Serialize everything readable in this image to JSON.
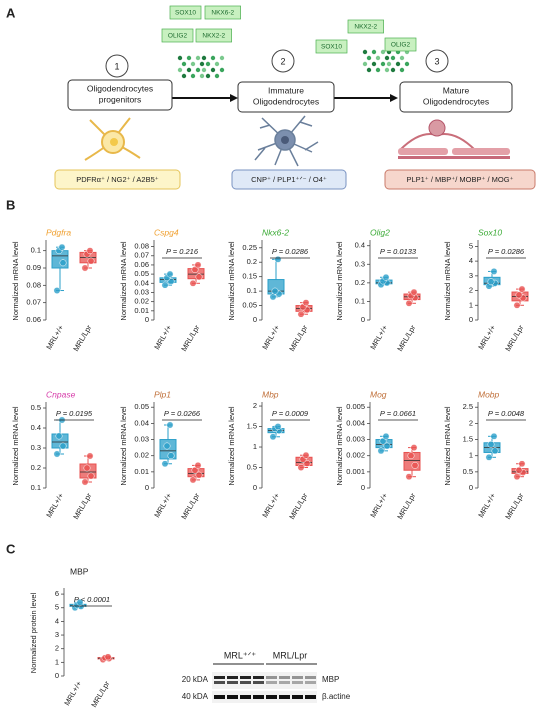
{
  "panel_a": {
    "label": "A",
    "steps": [
      "1",
      "2",
      "3"
    ],
    "stages": [
      [
        "Oligodendrocytes",
        "progenitors"
      ],
      [
        "Immature",
        "Oligodendrocytes"
      ],
      [
        "Mature",
        "Oligodendrocytes"
      ]
    ],
    "factors_1": [
      "SOX10",
      "NKX6-2",
      "OLIG2",
      "NKX2-2"
    ],
    "factors_2": [
      "NKX2-2",
      "SOX10",
      "OLIG2"
    ],
    "markers": [
      "PDFRα⁺ / NG2⁺ / A2B5⁺",
      "CNP⁺ / PLP1⁺ᐟ⁻ / O4⁺",
      "PLP1⁺ / MBP⁺/ MOBP⁺ / MOG⁺"
    ]
  },
  "panel_b": {
    "label": "B"
  },
  "panel_c": {
    "label": "C",
    "blot_groups": [
      "MRL⁺ᐟ⁺",
      "MRL/Lpr"
    ],
    "sizes": [
      "20 kDA",
      "40 kDA"
    ],
    "bands": [
      "MBP",
      "β.actine"
    ]
  },
  "chart_data": [
    {
      "type": "box",
      "title": "Pdgfra",
      "title_color": "#f0a030",
      "ylabel": "Normalized mRNA level",
      "categories": [
        "MRL+/+",
        "MRL/Lpr"
      ],
      "ylim": [
        0.06,
        0.105
      ],
      "yticks": [
        0.06,
        0.07,
        0.08,
        0.09,
        0.1
      ],
      "groups": [
        {
          "color": "#2a9fc9",
          "min": 0.077,
          "q1": 0.09,
          "median": 0.097,
          "q3": 0.1,
          "max": 0.102,
          "points": [
            0.077,
            0.093,
            0.1,
            0.102
          ]
        },
        {
          "color": "#e8504f",
          "min": 0.09,
          "q1": 0.093,
          "median": 0.096,
          "q3": 0.099,
          "max": 0.1,
          "points": [
            0.09,
            0.094,
            0.098,
            0.1
          ]
        }
      ]
    },
    {
      "type": "box",
      "title": "Cspg4",
      "title_color": "#f0a030",
      "ylabel": "Normalized mRNA level",
      "categories": [
        "MRL+/+",
        "MRL/Lpr"
      ],
      "p_label": "P = 0.216",
      "ylim": [
        0,
        0.085
      ],
      "yticks": [
        0,
        0.01,
        0.02,
        0.03,
        0.04,
        0.05,
        0.06,
        0.07,
        0.08
      ],
      "groups": [
        {
          "color": "#2a9fc9",
          "min": 0.038,
          "q1": 0.041,
          "median": 0.044,
          "q3": 0.046,
          "max": 0.05,
          "points": [
            0.038,
            0.042,
            0.046,
            0.05
          ]
        },
        {
          "color": "#e8504f",
          "min": 0.04,
          "q1": 0.045,
          "median": 0.05,
          "q3": 0.056,
          "max": 0.06,
          "points": [
            0.04,
            0.047,
            0.055,
            0.06
          ]
        }
      ]
    },
    {
      "type": "box",
      "title": "Nkx6-2",
      "title_color": "#3aaa35",
      "ylabel": "Normalized mRNA level",
      "categories": [
        "MRL+/+",
        "MRL/Lpr"
      ],
      "p_label": "P = 0.0286",
      "ylim": [
        0,
        0.27
      ],
      "yticks": [
        0,
        0.05,
        0.1,
        0.15,
        0.2,
        0.25
      ],
      "groups": [
        {
          "color": "#2a9fc9",
          "min": 0.08,
          "q1": 0.09,
          "median": 0.1,
          "q3": 0.14,
          "max": 0.21,
          "points": [
            0.08,
            0.09,
            0.1,
            0.21
          ]
        },
        {
          "color": "#e8504f",
          "min": 0.02,
          "q1": 0.03,
          "median": 0.04,
          "q3": 0.05,
          "max": 0.06,
          "points": [
            0.02,
            0.035,
            0.045,
            0.06
          ]
        }
      ]
    },
    {
      "type": "box",
      "title": "Olig2",
      "title_color": "#3aaa35",
      "ylabel": "Normalized mRNA level",
      "categories": [
        "MRL+/+",
        "MRL/Lpr"
      ],
      "p_label": "P = 0.0133",
      "ylim": [
        0,
        0.42
      ],
      "yticks": [
        0,
        0.1,
        0.2,
        0.3,
        0.4
      ],
      "groups": [
        {
          "color": "#2a9fc9",
          "min": 0.19,
          "q1": 0.195,
          "median": 0.2,
          "q3": 0.215,
          "max": 0.23,
          "points": [
            0.19,
            0.2,
            0.21,
            0.23
          ]
        },
        {
          "color": "#e8504f",
          "min": 0.09,
          "q1": 0.11,
          "median": 0.125,
          "q3": 0.14,
          "max": 0.15,
          "points": [
            0.09,
            0.12,
            0.13,
            0.15
          ]
        }
      ]
    },
    {
      "type": "box",
      "title": "Sox10",
      "title_color": "#3aaa35",
      "ylabel": "Normalized mRNA level",
      "categories": [
        "MRL+/+",
        "MRL/Lpr"
      ],
      "p_label": "P = 0.0286",
      "ylim": [
        0,
        5.3
      ],
      "yticks": [
        0,
        1,
        2,
        3,
        4,
        5
      ],
      "groups": [
        {
          "color": "#2a9fc9",
          "min": 2.3,
          "q1": 2.4,
          "median": 2.5,
          "q3": 2.9,
          "max": 3.3,
          "points": [
            2.3,
            2.5,
            2.6,
            3.3
          ]
        },
        {
          "color": "#e8504f",
          "min": 1,
          "q1": 1.3,
          "median": 1.6,
          "q3": 1.9,
          "max": 2.1,
          "points": [
            1,
            1.5,
            1.7,
            2.1
          ]
        }
      ]
    },
    {
      "type": "box",
      "title": "Cnpase",
      "title_color": "#d63aa8",
      "ylabel": "Normalized mRNA level",
      "categories": [
        "MRL+/+",
        "MRL/Lpr"
      ],
      "p_label": "P = 0.0195",
      "ylim": [
        0.1,
        0.52
      ],
      "yticks": [
        0.1,
        0.2,
        0.3,
        0.4,
        0.5
      ],
      "groups": [
        {
          "color": "#2a9fc9",
          "min": 0.27,
          "q1": 0.3,
          "median": 0.33,
          "q3": 0.37,
          "max": 0.44,
          "points": [
            0.27,
            0.31,
            0.36,
            0.44
          ]
        },
        {
          "color": "#e8504f",
          "min": 0.13,
          "q1": 0.15,
          "median": 0.18,
          "q3": 0.22,
          "max": 0.26,
          "points": [
            0.13,
            0.16,
            0.2,
            0.26
          ]
        }
      ]
    },
    {
      "type": "box",
      "title": "Plp1",
      "title_color": "#c0703a",
      "ylabel": "Normalized mRNA level",
      "categories": [
        "MRL+/+",
        "MRL/Lpr"
      ],
      "p_label": "P = 0.0266",
      "ylim": [
        0,
        0.052
      ],
      "yticks": [
        0,
        0.01,
        0.02,
        0.03,
        0.04,
        0.05
      ],
      "groups": [
        {
          "color": "#2a9fc9",
          "min": 0.015,
          "q1": 0.018,
          "median": 0.023,
          "q3": 0.03,
          "max": 0.039,
          "points": [
            0.015,
            0.02,
            0.026,
            0.039
          ]
        },
        {
          "color": "#e8504f",
          "min": 0.005,
          "q1": 0.007,
          "median": 0.009,
          "q3": 0.012,
          "max": 0.014,
          "points": [
            0.005,
            0.008,
            0.011,
            0.014
          ]
        }
      ]
    },
    {
      "type": "box",
      "title": "Mbp",
      "title_color": "#c0703a",
      "ylabel": "Normalized mRNA level",
      "categories": [
        "MRL+/+",
        "MRL/Lpr"
      ],
      "p_label": "P = 0.0009",
      "ylim": [
        0,
        2.05
      ],
      "yticks": [
        0,
        0.5,
        1,
        1.5,
        2
      ],
      "groups": [
        {
          "color": "#2a9fc9",
          "min": 1.25,
          "q1": 1.35,
          "median": 1.4,
          "q3": 1.45,
          "max": 1.5,
          "points": [
            1.25,
            1.4,
            1.45,
            1.5
          ]
        },
        {
          "color": "#e8504f",
          "min": 0.5,
          "q1": 0.55,
          "median": 0.62,
          "q3": 0.75,
          "max": 0.8,
          "points": [
            0.5,
            0.6,
            0.7,
            0.8
          ]
        }
      ]
    },
    {
      "type": "box",
      "title": "Mog",
      "title_color": "#c0703a",
      "ylabel": "Normalized mRNA level",
      "categories": [
        "MRL+/+",
        "MRL/Lpr"
      ],
      "p_label": "P = 0.0661",
      "ylim": [
        0,
        0.0052
      ],
      "yticks": [
        0,
        0.001,
        0.002,
        0.003,
        0.004,
        0.005
      ],
      "groups": [
        {
          "color": "#2a9fc9",
          "min": 0.0023,
          "q1": 0.0025,
          "median": 0.0027,
          "q3": 0.003,
          "max": 0.0032,
          "points": [
            0.0023,
            0.0026,
            0.0029,
            0.0032
          ]
        },
        {
          "color": "#e8504f",
          "min": 0.0007,
          "q1": 0.0011,
          "median": 0.0017,
          "q3": 0.0022,
          "max": 0.0025,
          "points": [
            0.0007,
            0.0014,
            0.002,
            0.0025
          ]
        }
      ]
    },
    {
      "type": "box",
      "title": "Mobp",
      "title_color": "#c0703a",
      "ylabel": "Normalized mRNA level",
      "categories": [
        "MRL+/+",
        "MRL/Lpr"
      ],
      "p_label": "P = 0.0048",
      "ylim": [
        0,
        2.6
      ],
      "yticks": [
        0,
        0.5,
        1,
        1.5,
        2,
        2.5
      ],
      "groups": [
        {
          "color": "#2a9fc9",
          "min": 0.95,
          "q1": 1.1,
          "median": 1.25,
          "q3": 1.4,
          "max": 1.6,
          "points": [
            0.95,
            1.15,
            1.35,
            1.6
          ]
        },
        {
          "color": "#e8504f",
          "min": 0.35,
          "q1": 0.45,
          "median": 0.5,
          "q3": 0.6,
          "max": 0.75,
          "points": [
            0.35,
            0.48,
            0.55,
            0.75
          ]
        }
      ]
    },
    {
      "type": "box",
      "title": "MBP",
      "title_color": "#222222",
      "ylabel": "Normalized protein level",
      "categories": [
        "MRL+/+",
        "MRL/Lpr"
      ],
      "p_label": "P < 0.0001",
      "ylim": [
        0,
        6.3
      ],
      "yticks": [
        0,
        1,
        2,
        3,
        4,
        5,
        6
      ],
      "groups": [
        {
          "color": "#2a9fc9",
          "min": 5,
          "q1": 5.1,
          "median": 5.15,
          "q3": 5.25,
          "max": 5.4,
          "points": [
            5,
            5.1,
            5.2,
            5.4
          ]
        },
        {
          "color": "#e8504f",
          "min": 1.2,
          "q1": 1.25,
          "median": 1.3,
          "q3": 1.35,
          "max": 1.4,
          "points": [
            1.2,
            1.28,
            1.33,
            1.4
          ]
        }
      ]
    }
  ]
}
